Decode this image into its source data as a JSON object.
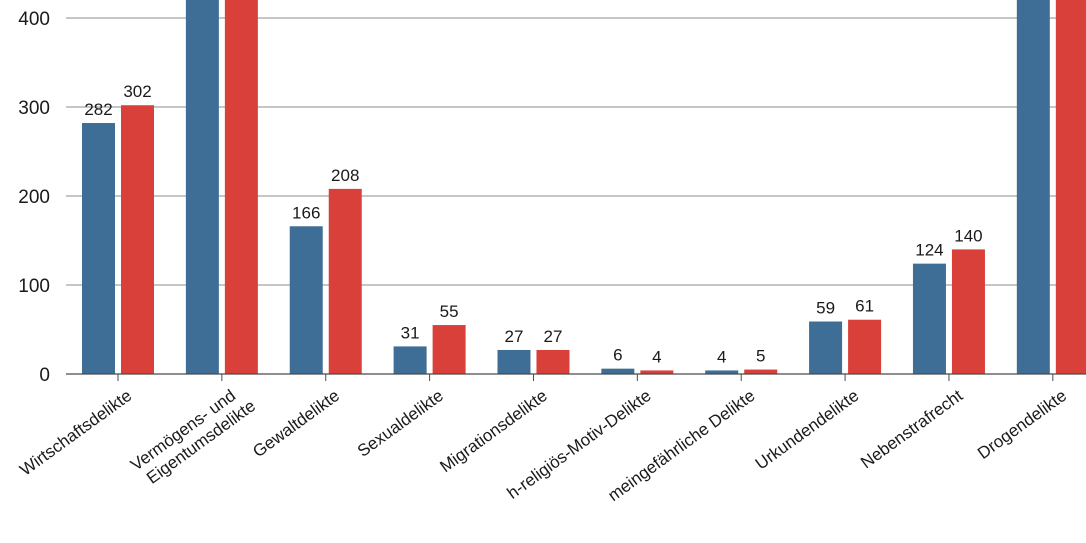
{
  "chart_data": {
    "type": "bar",
    "title": "",
    "xlabel": "",
    "ylabel": "",
    "ylim": [
      0,
      400
    ],
    "yticks": [
      "0",
      "100",
      "200",
      "300",
      "400"
    ],
    "grid": true,
    "categories": [
      [
        "Wirtschaftsdelikte"
      ],
      [
        "Vermögens- und",
        "Eigentumsdelikte"
      ],
      [
        "Gewaltdelikte"
      ],
      [
        "Sexualdelikte"
      ],
      [
        "Migrationsdelikte"
      ],
      [
        "h-religiös-Motiv-Delikte"
      ],
      [
        "meingefährliche Delikte"
      ],
      [
        "Urkundendelikte"
      ],
      [
        "Nebenstrafrecht"
      ],
      [
        "Drogendelikte"
      ]
    ],
    "series": [
      {
        "color": "#3e6e96",
        "values": [
          282,
          null,
          166,
          31,
          27,
          6,
          4,
          59,
          124,
          null
        ],
        "labels": [
          "282",
          "",
          "166",
          "31",
          "27",
          "6",
          "4",
          "59",
          "124",
          ""
        ]
      },
      {
        "color": "#d9403a",
        "values": [
          302,
          null,
          208,
          55,
          27,
          4,
          5,
          61,
          140,
          null
        ],
        "labels": [
          "302",
          "",
          "208",
          "55",
          "27",
          "4",
          "5",
          "61",
          "140",
          ""
        ]
      }
    ]
  }
}
